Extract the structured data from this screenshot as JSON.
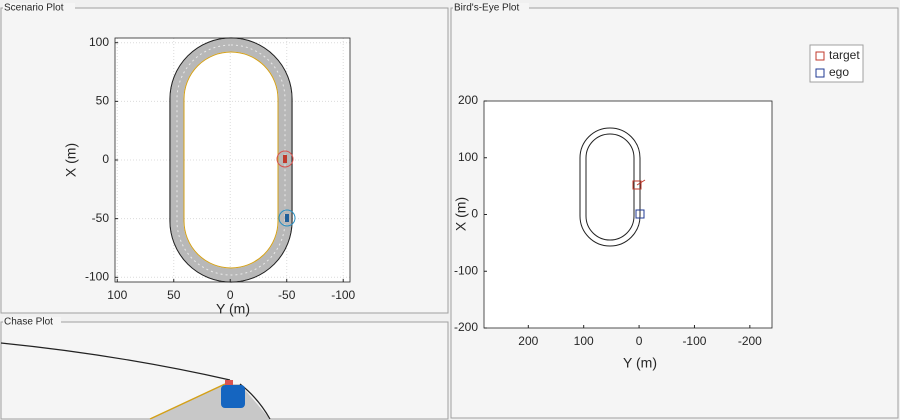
{
  "panels": {
    "scenario": "Scenario Plot",
    "chase": "Chase Plot",
    "birds_eye": "Bird's-Eye Plot"
  },
  "scenario_plot": {
    "xlabel": "Y (m)",
    "ylabel": "X (m)",
    "xlim": [
      102,
      -106
    ],
    "ylim": [
      -104,
      104
    ],
    "xticks": [
      100,
      50,
      0,
      -50,
      -100
    ],
    "yticks": [
      100,
      50,
      0,
      -50,
      -100
    ],
    "grid": true
  },
  "birds_eye_plot": {
    "xlabel": "Y (m)",
    "ylabel": "X (m)",
    "xlim": [
      280,
      -240
    ],
    "ylim": [
      -200,
      200
    ],
    "xticks": [
      200,
      100,
      0,
      -100,
      -200
    ],
    "yticks": [
      200,
      100,
      0,
      -100,
      -200
    ],
    "grid": false,
    "legend": [
      {
        "name": "target",
        "color": "#c0392b"
      },
      {
        "name": "ego",
        "color": "#1f3a93"
      }
    ]
  }
}
